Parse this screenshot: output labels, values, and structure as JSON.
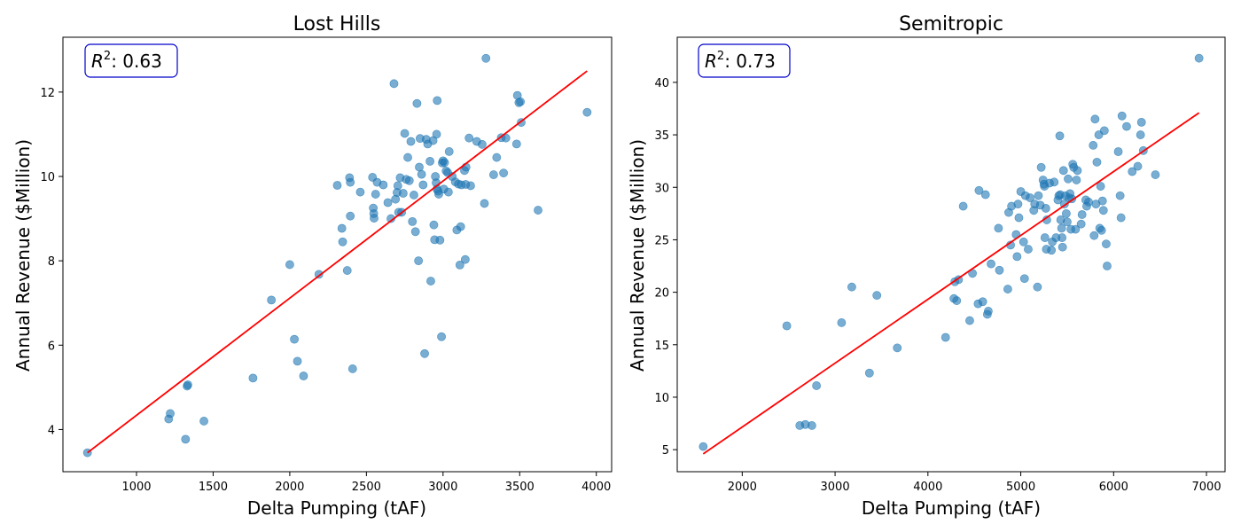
{
  "chart_data": [
    {
      "type": "scatter",
      "title": "Lost Hills",
      "xlabel": "Delta Pumping (tAF)",
      "ylabel": "Annual Revenue ($Million)",
      "xlim": [
        520,
        4100
      ],
      "ylim": [
        3.0,
        13.3
      ],
      "xticks": [
        1000,
        1500,
        2000,
        2500,
        3000,
        3500,
        4000
      ],
      "yticks": [
        4,
        6,
        8,
        10,
        12
      ],
      "r2_prefix": "R",
      "r2_sup": "2",
      "r2_value": ": 0.63",
      "point_color": "#1f77b4",
      "line_color": "#ff0000",
      "fit_line": [
        [
          680,
          3.45
        ],
        [
          3940,
          12.5
        ]
      ],
      "points": [
        [
          680,
          3.45
        ],
        [
          1210,
          4.25
        ],
        [
          1220,
          4.38
        ],
        [
          1320,
          3.77
        ],
        [
          1330,
          5.03
        ],
        [
          1335,
          5.06
        ],
        [
          1440,
          4.2
        ],
        [
          1760,
          5.22
        ],
        [
          1880,
          7.07
        ],
        [
          2000,
          7.91
        ],
        [
          2030,
          6.14
        ],
        [
          2050,
          5.62
        ],
        [
          2090,
          5.27
        ],
        [
          2190,
          7.68
        ],
        [
          2310,
          9.79
        ],
        [
          2340,
          8.77
        ],
        [
          2345,
          8.45
        ],
        [
          2375,
          7.77
        ],
        [
          2390,
          9.97
        ],
        [
          2395,
          9.06
        ],
        [
          2395,
          9.86
        ],
        [
          2410,
          5.44
        ],
        [
          2460,
          9.63
        ],
        [
          2540,
          9.98
        ],
        [
          2545,
          9.25
        ],
        [
          2548,
          9.12
        ],
        [
          2550,
          9.01
        ],
        [
          2560,
          9.58
        ],
        [
          2570,
          9.86
        ],
        [
          2610,
          9.8
        ],
        [
          2640,
          9.38
        ],
        [
          2660,
          9.0
        ],
        [
          2680,
          12.2
        ],
        [
          2690,
          9.46
        ],
        [
          2700,
          9.62
        ],
        [
          2705,
          9.78
        ],
        [
          2710,
          9.15
        ],
        [
          2720,
          9.97
        ],
        [
          2730,
          9.15
        ],
        [
          2740,
          9.6
        ],
        [
          2750,
          11.02
        ],
        [
          2760,
          9.93
        ],
        [
          2770,
          10.45
        ],
        [
          2780,
          9.9
        ],
        [
          2790,
          10.83
        ],
        [
          2800,
          8.93
        ],
        [
          2810,
          9.56
        ],
        [
          2820,
          8.69
        ],
        [
          2830,
          11.73
        ],
        [
          2840,
          8.0
        ],
        [
          2845,
          10.22
        ],
        [
          2850,
          10.9
        ],
        [
          2860,
          10.05
        ],
        [
          2870,
          9.8
        ],
        [
          2880,
          5.8
        ],
        [
          2890,
          10.88
        ],
        [
          2900,
          10.77
        ],
        [
          2915,
          10.36
        ],
        [
          2920,
          7.52
        ],
        [
          2935,
          10.85
        ],
        [
          2940,
          8.85
        ],
        [
          2945,
          8.5
        ],
        [
          2950,
          10.0
        ],
        [
          2955,
          9.85
        ],
        [
          2958,
          11.0
        ],
        [
          2960,
          9.7
        ],
        [
          2962,
          11.8
        ],
        [
          2968,
          9.65
        ],
        [
          2972,
          9.58
        ],
        [
          2980,
          8.49
        ],
        [
          2990,
          6.2
        ],
        [
          2995,
          10.32
        ],
        [
          3000,
          10.37
        ],
        [
          3005,
          9.7
        ],
        [
          3010,
          10.33
        ],
        [
          3020,
          10.13
        ],
        [
          3030,
          10.09
        ],
        [
          3035,
          9.63
        ],
        [
          3040,
          10.59
        ],
        [
          3060,
          10.0
        ],
        [
          3080,
          9.87
        ],
        [
          3090,
          8.73
        ],
        [
          3100,
          9.82
        ],
        [
          3110,
          7.9
        ],
        [
          3115,
          8.81
        ],
        [
          3120,
          9.8
        ],
        [
          3140,
          10.14
        ],
        [
          3145,
          8.03
        ],
        [
          3148,
          9.81
        ],
        [
          3150,
          10.22
        ],
        [
          3170,
          10.91
        ],
        [
          3180,
          9.78
        ],
        [
          3220,
          10.83
        ],
        [
          3255,
          10.76
        ],
        [
          3270,
          9.36
        ],
        [
          3280,
          12.8
        ],
        [
          3330,
          10.04
        ],
        [
          3350,
          10.45
        ],
        [
          3380,
          10.92
        ],
        [
          3395,
          10.08
        ],
        [
          3410,
          10.91
        ],
        [
          3480,
          10.77
        ],
        [
          3485,
          11.92
        ],
        [
          3495,
          11.75
        ],
        [
          3505,
          11.77
        ],
        [
          3510,
          11.28
        ],
        [
          3620,
          9.2
        ],
        [
          3940,
          11.52
        ]
      ]
    },
    {
      "type": "scatter",
      "title": "Semitropic",
      "xlabel": "Delta Pumping (tAF)",
      "ylabel": "Annual Revenue ($Million)",
      "xlim": [
        1300,
        7200
      ],
      "ylim": [
        2.9,
        44.3
      ],
      "xticks": [
        2000,
        3000,
        4000,
        5000,
        6000,
        7000
      ],
      "yticks": [
        5,
        10,
        15,
        20,
        25,
        30,
        35,
        40
      ],
      "r2_prefix": "R",
      "r2_sup": "2",
      "r2_value": ": 0.73",
      "point_color": "#1f77b4",
      "line_color": "#ff0000",
      "fit_line": [
        [
          1580,
          4.6
        ],
        [
          6920,
          37.1
        ]
      ],
      "points": [
        [
          1580,
          5.3
        ],
        [
          2480,
          16.8
        ],
        [
          2620,
          7.3
        ],
        [
          2680,
          7.4
        ],
        [
          2750,
          7.3
        ],
        [
          2800,
          11.1
        ],
        [
          3070,
          17.1
        ],
        [
          3180,
          20.5
        ],
        [
          3370,
          12.3
        ],
        [
          3450,
          19.7
        ],
        [
          3670,
          14.7
        ],
        [
          4190,
          15.7
        ],
        [
          4280,
          19.4
        ],
        [
          4290,
          21.0
        ],
        [
          4310,
          19.2
        ],
        [
          4330,
          21.2
        ],
        [
          4380,
          28.2
        ],
        [
          4450,
          17.3
        ],
        [
          4480,
          21.8
        ],
        [
          4540,
          18.9
        ],
        [
          4550,
          29.7
        ],
        [
          4590,
          19.1
        ],
        [
          4620,
          29.3
        ],
        [
          4640,
          17.9
        ],
        [
          4650,
          18.2
        ],
        [
          4680,
          22.7
        ],
        [
          4760,
          26.1
        ],
        [
          4770,
          22.1
        ],
        [
          4860,
          20.3
        ],
        [
          4870,
          27.6
        ],
        [
          4890,
          24.5
        ],
        [
          4900,
          28.2
        ],
        [
          4950,
          25.5
        ],
        [
          4960,
          23.4
        ],
        [
          4970,
          28.4
        ],
        [
          4980,
          27.1
        ],
        [
          5000,
          29.6
        ],
        [
          5030,
          24.8
        ],
        [
          5040,
          21.3
        ],
        [
          5050,
          29.2
        ],
        [
          5080,
          24.1
        ],
        [
          5100,
          29.0
        ],
        [
          5140,
          27.8
        ],
        [
          5150,
          28.4
        ],
        [
          5180,
          20.5
        ],
        [
          5190,
          29.2
        ],
        [
          5210,
          28.3
        ],
        [
          5220,
          31.9
        ],
        [
          5240,
          30.7
        ],
        [
          5250,
          30.3
        ],
        [
          5255,
          30.1
        ],
        [
          5260,
          25.2
        ],
        [
          5270,
          28.0
        ],
        [
          5275,
          24.1
        ],
        [
          5280,
          26.9
        ],
        [
          5310,
          30.4
        ],
        [
          5330,
          24.0
        ],
        [
          5340,
          24.8
        ],
        [
          5360,
          30.5
        ],
        [
          5380,
          25.2
        ],
        [
          5400,
          28.8
        ],
        [
          5410,
          29.2
        ],
        [
          5420,
          34.9
        ],
        [
          5425,
          29.3
        ],
        [
          5430,
          26.9
        ],
        [
          5440,
          26.1
        ],
        [
          5445,
          25.2
        ],
        [
          5450,
          24.3
        ],
        [
          5460,
          31.6
        ],
        [
          5470,
          28.4
        ],
        [
          5480,
          29.2
        ],
        [
          5490,
          27.5
        ],
        [
          5500,
          26.7
        ],
        [
          5510,
          30.8
        ],
        [
          5520,
          29.0
        ],
        [
          5530,
          29.4
        ],
        [
          5540,
          26.0
        ],
        [
          5550,
          28.9
        ],
        [
          5560,
          32.2
        ],
        [
          5570,
          31.9
        ],
        [
          5590,
          26.0
        ],
        [
          5600,
          30.7
        ],
        [
          5610,
          31.6
        ],
        [
          5650,
          26.5
        ],
        [
          5660,
          27.4
        ],
        [
          5700,
          28.8
        ],
        [
          5710,
          28.2
        ],
        [
          5730,
          28.6
        ],
        [
          5780,
          34.0
        ],
        [
          5790,
          25.4
        ],
        [
          5800,
          36.5
        ],
        [
          5810,
          28.4
        ],
        [
          5820,
          32.4
        ],
        [
          5840,
          35.0
        ],
        [
          5850,
          26.1
        ],
        [
          5860,
          30.1
        ],
        [
          5870,
          25.9
        ],
        [
          5880,
          28.7
        ],
        [
          5890,
          27.8
        ],
        [
          5900,
          35.4
        ],
        [
          5920,
          24.6
        ],
        [
          5930,
          22.5
        ],
        [
          6050,
          33.4
        ],
        [
          6070,
          29.2
        ],
        [
          6080,
          27.1
        ],
        [
          6090,
          36.8
        ],
        [
          6140,
          35.8
        ],
        [
          6200,
          31.5
        ],
        [
          6260,
          32.0
        ],
        [
          6290,
          35.0
        ],
        [
          6300,
          36.2
        ],
        [
          6320,
          33.5
        ],
        [
          6450,
          31.2
        ],
        [
          6920,
          42.3
        ]
      ]
    }
  ]
}
